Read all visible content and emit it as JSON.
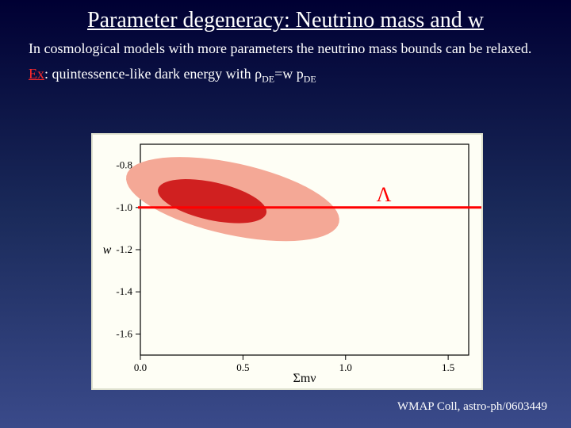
{
  "title": "Parameter degeneracy: Neutrino mass and w",
  "body": "In cosmological models with more parameters the neutrino mass bounds can be relaxed.",
  "example_prefix": "Ex",
  "example_text": ": quintessence-like dark energy with ρ",
  "example_sub1": "DE",
  "example_mid": "=w p",
  "example_sub2": "DE",
  "citation": "WMAP Coll, astro-ph/0603449",
  "chart": {
    "type": "contour-scatter",
    "background_color": "#fefef5",
    "frame_color": "#000000",
    "xlabel": "Σmν",
    "ylabel": "w",
    "label_fontsize": 16,
    "tick_fontsize": 13,
    "xlim": [
      0.0,
      1.6
    ],
    "ylim": [
      -1.7,
      -0.7
    ],
    "xticks": [
      0.0,
      0.5,
      1.0,
      1.5
    ],
    "yticks": [
      -0.8,
      -1.0,
      -1.2,
      -1.4,
      -1.6
    ],
    "contours": {
      "outer": {
        "color": "#f4a896",
        "points_desc": "tilted ellipse centered ~ (0.45,-0.96), semi-axes ~ (0.53,0.17), tilt ~ -12deg"
      },
      "inner": {
        "color": "#d02020",
        "points_desc": "tilted ellipse centered ~ (0.35,-0.97), semi-axes ~ (0.27,0.09), tilt ~ -12deg"
      }
    },
    "lambda_line": {
      "y": -1.0,
      "color": "#ff0000",
      "width": 3,
      "label": "Λ",
      "label_color": "#ff0000",
      "label_fontsize": 26,
      "label_x": 1.15
    }
  },
  "colors": {
    "slide_bg_top": "#000033",
    "slide_bg_bottom": "#3a4a8a",
    "text": "#ffffff",
    "red": "#ff2a2a"
  }
}
